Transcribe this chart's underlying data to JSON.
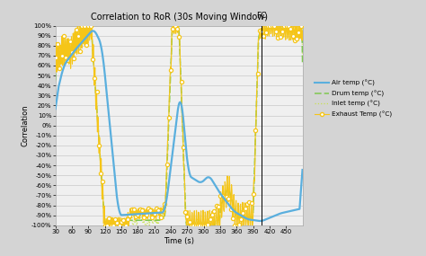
{
  "title": "Correlation to RoR (30s Moving Window)",
  "xlabel": "Time (s)",
  "ylabel": "Correlation",
  "fc_line_x": 405,
  "fc_label": "FC",
  "x_min": 30,
  "x_max": 480,
  "y_min": -1.0,
  "y_max": 1.0,
  "x_ticks": [
    30,
    60,
    90,
    120,
    150,
    180,
    210,
    240,
    270,
    300,
    330,
    360,
    390,
    420,
    450
  ],
  "y_ticks": [
    -1.0,
    -0.9,
    -0.8,
    -0.7,
    -0.6,
    -0.5,
    -0.4,
    -0.3,
    -0.2,
    -0.1,
    0.0,
    0.1,
    0.2,
    0.3,
    0.4,
    0.5,
    0.6,
    0.7,
    0.8,
    0.9,
    1.0
  ],
  "y_tick_labels": [
    "-100%",
    "-90%",
    "-80%",
    "-70%",
    "-60%",
    "-50%",
    "-40%",
    "-30%",
    "-20%",
    "-10%",
    "0%",
    "10%",
    "20%",
    "30%",
    "40%",
    "50%",
    "60%",
    "70%",
    "80%",
    "90%",
    "100%"
  ],
  "color_air": "#5aafde",
  "color_drum": "#7ec850",
  "color_inlet": "#c8e050",
  "color_exhaust": "#f5c518",
  "background_color": "#d4d4d4",
  "plot_bg_color": "#f0f0f0",
  "legend_labels": [
    "Air temp (°C)",
    "Drum temp (°C)",
    "Inlet temp (°C)",
    "Exhaust Temp (°C)"
  ]
}
